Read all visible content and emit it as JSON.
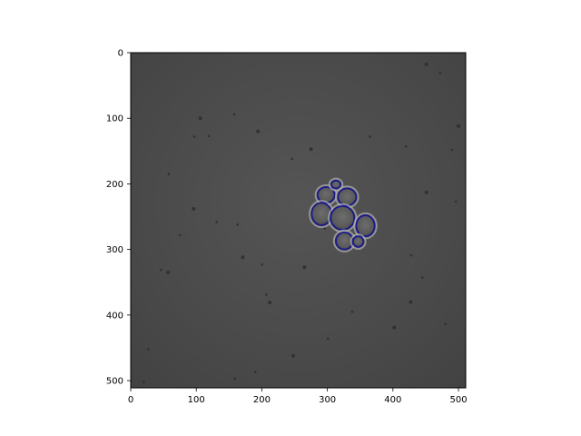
{
  "figure": {
    "background": "#ffffff",
    "image_background": "#4b4b4b",
    "outline_color": "#1a1a8c",
    "highlight_color": "#b0b0b0"
  },
  "axes": {
    "x": {
      "range": [
        0,
        511
      ],
      "ticks": [
        0,
        100,
        200,
        300,
        400,
        500
      ],
      "tick_labels": [
        "0",
        "100",
        "200",
        "300",
        "400",
        "500"
      ]
    },
    "y": {
      "range": [
        0,
        511
      ],
      "ticks": [
        0,
        100,
        200,
        300,
        400,
        500
      ],
      "tick_labels": [
        "0",
        "100",
        "200",
        "300",
        "400",
        "500"
      ],
      "inverted": true
    }
  },
  "image": {
    "description_size": [
      512,
      512
    ],
    "cells": [
      {
        "name": "cell-1",
        "cx": 298,
        "cy": 217,
        "rx": 13,
        "ry": 12
      },
      {
        "name": "cell-2",
        "cx": 313,
        "cy": 201,
        "rx": 7,
        "ry": 6
      },
      {
        "name": "cell-3",
        "cx": 330,
        "cy": 220,
        "rx": 14,
        "ry": 13
      },
      {
        "name": "cell-4",
        "cx": 291,
        "cy": 246,
        "rx": 15,
        "ry": 17
      },
      {
        "name": "cell-5",
        "cx": 323,
        "cy": 252,
        "rx": 18,
        "ry": 18
      },
      {
        "name": "cell-6",
        "cx": 358,
        "cy": 264,
        "rx": 14,
        "ry": 16
      },
      {
        "name": "cell-7",
        "cx": 326,
        "cy": 287,
        "rx": 13,
        "ry": 13
      },
      {
        "name": "cell-8",
        "cx": 347,
        "cy": 288,
        "rx": 8,
        "ry": 8
      }
    ],
    "specks": [
      [
        106,
        100
      ],
      [
        158,
        94
      ],
      [
        97,
        128
      ],
      [
        194,
        120
      ],
      [
        119,
        127
      ],
      [
        131,
        258
      ],
      [
        96,
        238
      ],
      [
        163,
        262
      ],
      [
        46,
        331
      ],
      [
        57,
        335
      ],
      [
        200,
        323
      ],
      [
        207,
        369
      ],
      [
        212,
        381
      ],
      [
        190,
        487
      ],
      [
        159,
        497
      ],
      [
        248,
        462
      ],
      [
        20,
        502
      ],
      [
        27,
        452
      ],
      [
        451,
        18
      ],
      [
        472,
        31
      ],
      [
        490,
        148
      ],
      [
        500,
        112
      ],
      [
        445,
        343
      ],
      [
        428,
        309
      ],
      [
        427,
        380
      ],
      [
        338,
        395
      ],
      [
        301,
        436
      ],
      [
        265,
        327
      ],
      [
        246,
        162
      ],
      [
        296,
        268
      ],
      [
        275,
        147
      ],
      [
        365,
        128
      ],
      [
        420,
        143
      ],
      [
        451,
        213
      ],
      [
        496,
        227
      ],
      [
        480,
        414
      ],
      [
        402,
        419
      ],
      [
        58,
        185
      ],
      [
        75,
        278
      ],
      [
        171,
        312
      ]
    ]
  }
}
